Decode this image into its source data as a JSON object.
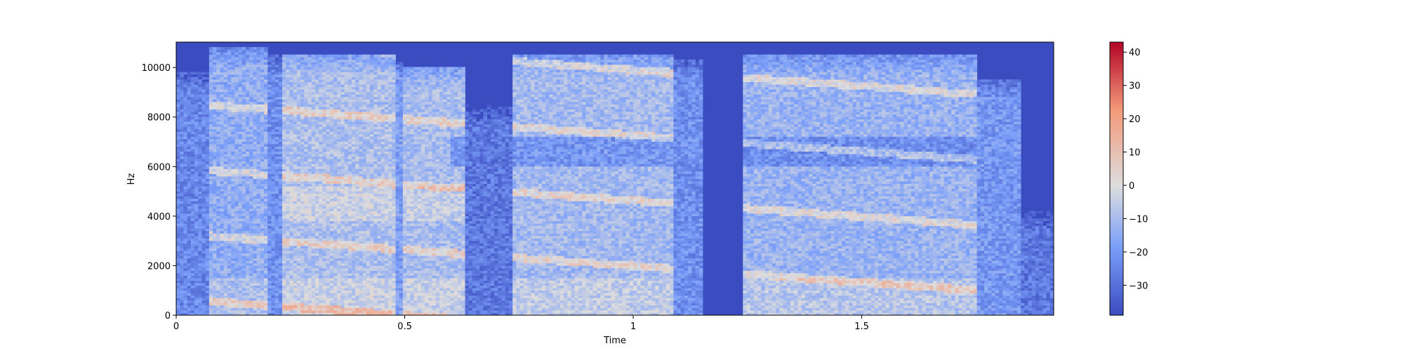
{
  "chart_data": {
    "type": "heatmap",
    "subtype": "spectrogram",
    "xlabel": "Time",
    "ylabel": "Hz",
    "xlim": [
      0,
      1.92
    ],
    "ylim": [
      0,
      11025
    ],
    "xticks": [
      {
        "value": 0,
        "label": "0"
      },
      {
        "value": 0.5,
        "label": "0.5"
      },
      {
        "value": 1,
        "label": "1"
      },
      {
        "value": 1.5,
        "label": "1.5"
      }
    ],
    "yticks": [
      {
        "value": 0,
        "label": "0"
      },
      {
        "value": 2000,
        "label": "2000"
      },
      {
        "value": 4000,
        "label": "4000"
      },
      {
        "value": 6000,
        "label": "6000"
      },
      {
        "value": 8000,
        "label": "8000"
      },
      {
        "value": 10000,
        "label": "10000"
      }
    ],
    "colormap": "coolwarm",
    "colorbar": {
      "vmin": -39,
      "vmax": 43,
      "ticks": [
        {
          "value": 40,
          "label": "40"
        },
        {
          "value": 30,
          "label": "30"
        },
        {
          "value": 20,
          "label": "20"
        },
        {
          "value": 10,
          "label": "10"
        },
        {
          "value": 0,
          "label": "0"
        },
        {
          "value": -10,
          "label": "−10"
        },
        {
          "value": -20,
          "label": "−20"
        },
        {
          "value": -30,
          "label": "−30"
        }
      ]
    },
    "colors": {
      "low": "#3b4cc0",
      "mid": "#dddddd",
      "high": "#b40426"
    },
    "grid": false,
    "segments": [
      {
        "start": 0.0,
        "end": 0.07,
        "level": -24,
        "max_hz": 9800
      },
      {
        "start": 0.07,
        "end": 0.2,
        "level": -14,
        "max_hz": 10800
      },
      {
        "start": 0.2,
        "end": 0.23,
        "level": -22,
        "max_hz": 10500
      },
      {
        "start": 0.23,
        "end": 0.48,
        "level": -8,
        "max_hz": 10500
      },
      {
        "start": 0.48,
        "end": 0.5,
        "level": -18,
        "max_hz": 10200
      },
      {
        "start": 0.5,
        "end": 0.63,
        "level": -9,
        "max_hz": 10000
      },
      {
        "start": 0.63,
        "end": 0.74,
        "level": -28,
        "max_hz": 8500
      },
      {
        "start": 0.74,
        "end": 1.09,
        "level": -10,
        "max_hz": 10500
      },
      {
        "start": 1.09,
        "end": 1.15,
        "level": -22,
        "max_hz": 10300
      },
      {
        "start": 1.15,
        "end": 1.24,
        "level": -38,
        "max_hz": 0
      },
      {
        "start": 1.24,
        "end": 1.75,
        "level": -12,
        "max_hz": 10500
      },
      {
        "start": 1.75,
        "end": 1.85,
        "level": -20,
        "max_hz": 9500
      },
      {
        "start": 1.85,
        "end": 1.92,
        "level": -28,
        "max_hz": 4200
      }
    ]
  }
}
